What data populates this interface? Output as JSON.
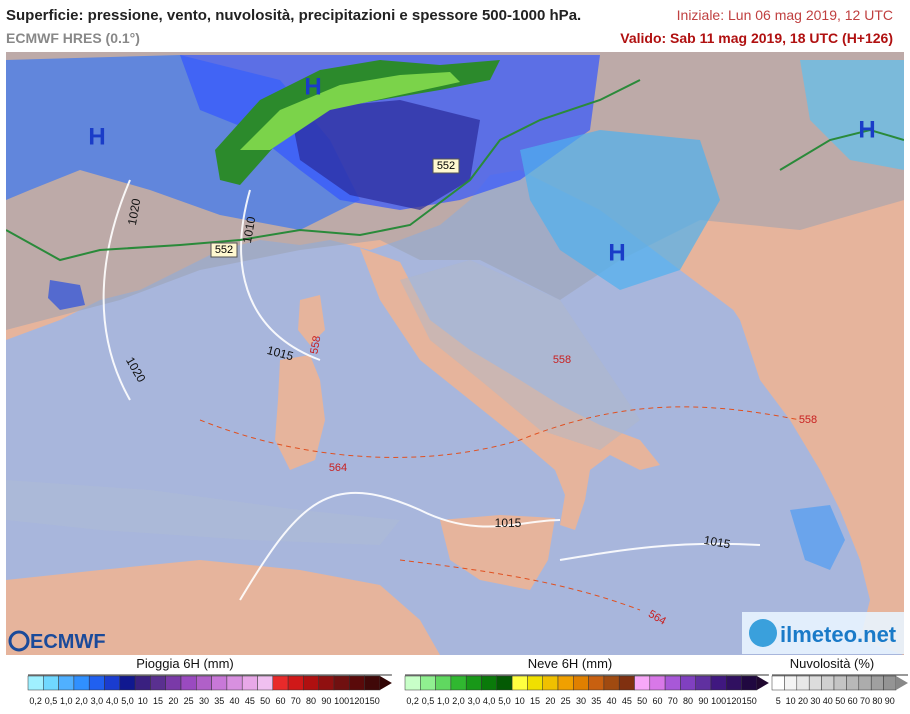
{
  "header": {
    "title": "Superficie: pressione, vento, nuvolosità, precipitazioni e spessore 500-1000 hPa.",
    "model": "ECMWF HRES (0.1°)",
    "init": "Iniziale: Lun 06 mag 2019, 12 UTC",
    "valid": "Valido: Sab 11 mag 2019, 18 UTC (H+126)"
  },
  "map": {
    "labels": [
      {
        "text": "H"
      },
      {
        "text": "H"
      },
      {
        "text": "H"
      },
      {
        "text": "H"
      },
      {
        "text": "1020"
      },
      {
        "text": "1010"
      },
      {
        "text": "552"
      },
      {
        "text": "552"
      },
      {
        "text": "1015"
      },
      {
        "text": "1020"
      },
      {
        "text": "558"
      },
      {
        "text": "558"
      },
      {
        "text": "564"
      },
      {
        "text": "564"
      },
      {
        "text": "1015"
      },
      {
        "text": "1015"
      },
      {
        "text": "558"
      }
    ]
  },
  "logos": {
    "left": "ECMWF",
    "right": "ilmeteo.net"
  },
  "legends": {
    "rain": {
      "title": "Pioggia 6H (mm)",
      "labels": [
        "0,2",
        "0,5",
        "1,0",
        "2,0",
        "3,0",
        "4,0",
        "5,0",
        "10",
        "15",
        "20",
        "25",
        "30",
        "35",
        "40",
        "45",
        "50",
        "60",
        "70",
        "80",
        "90",
        "100",
        "120",
        "150"
      ]
    },
    "snow": {
      "title": "Neve 6H (mm)",
      "labels": [
        "0,2",
        "0,5",
        "1,0",
        "2,0",
        "3,0",
        "4,0",
        "5,0",
        "10",
        "15",
        "20",
        "25",
        "30",
        "35",
        "40",
        "45",
        "50",
        "60",
        "70",
        "80",
        "90",
        "100",
        "120",
        "150"
      ]
    },
    "clouds": {
      "title": "Nuvolosità (%)",
      "labels": [
        "5",
        "10",
        "20",
        "30",
        "40",
        "50",
        "60",
        "70",
        "80",
        "90"
      ]
    }
  }
}
